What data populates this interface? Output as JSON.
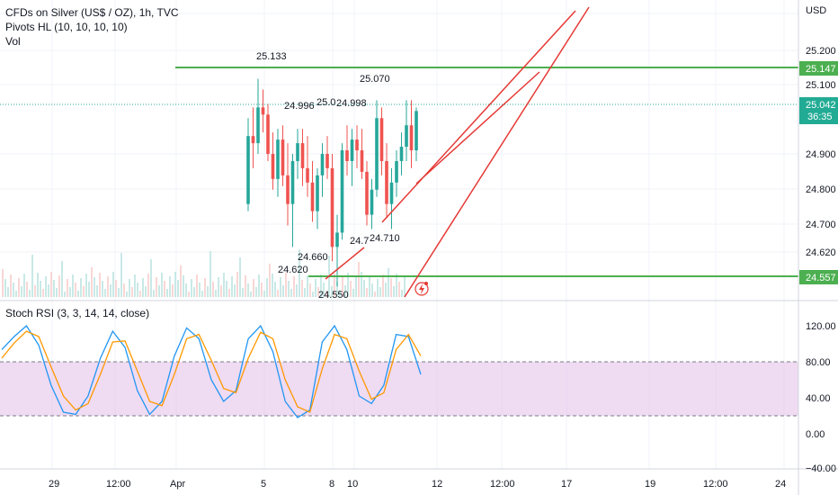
{
  "legend": {
    "symbol": "CFDs on Silver (US$ / OZ), 1h, TVC",
    "indicator": "Pivots HL (10, 10, 10, 10)",
    "volume": "Vol"
  },
  "rsi_legend": "Stoch RSI (3, 3, 14, 14, close)",
  "price_axis": {
    "currency": "USD",
    "ticks": [
      "25.200",
      "25.100",
      "24.900",
      "24.800",
      "24.700",
      "24.620"
    ],
    "tags": [
      {
        "value": "25.147",
        "color": "#4caf50"
      },
      {
        "value": "25.042",
        "sub": "36:35",
        "color": "#22ab94"
      },
      {
        "value": "24.557",
        "color": "#4caf50"
      }
    ]
  },
  "rsi_axis": {
    "ticks": [
      "120.00",
      "80.00",
      "40.00",
      "0.00",
      "−40.00"
    ]
  },
  "time_axis": {
    "labels": [
      "29",
      "12:00",
      "Apr",
      "5",
      "8",
      "10",
      "12",
      "12:00",
      "17",
      "19",
      "12:00",
      "24"
    ]
  },
  "colors": {
    "up": "#26a69a",
    "down": "#ef5350",
    "support": "#4caf50",
    "trend": "#e53935",
    "rsi_k": "#2196f3",
    "rsi_d": "#ff9800",
    "rsi_band": "#e1bee7"
  },
  "chart_data": [
    {
      "type": "candlestick",
      "title": "CFDs on Silver (US$ / OZ), 1h, TVC",
      "ylabel": "USD",
      "ylim": [
        24.52,
        25.3
      ],
      "horizontal_levels": [
        25.147,
        24.557
      ],
      "current_price": 25.042,
      "pivot_labels": [
        {
          "value": "25.133",
          "kind": "high"
        },
        {
          "value": "24.996",
          "kind": "high"
        },
        {
          "value": "25.0",
          "kind": "high"
        },
        {
          "value": "24.998",
          "kind": "high"
        },
        {
          "value": "25.070",
          "kind": "high"
        },
        {
          "value": "24.660",
          "kind": "low"
        },
        {
          "value": "24.620",
          "kind": "low"
        },
        {
          "value": "24.550",
          "kind": "low"
        },
        {
          "value": "24.7",
          "kind": "low"
        },
        {
          "value": "24.710",
          "kind": "low"
        }
      ],
      "candles": [
        [
          24.78,
          25.02,
          24.76,
          24.97
        ],
        [
          24.97,
          25.05,
          24.88,
          24.95
        ],
        [
          24.95,
          25.13,
          24.92,
          25.05
        ],
        [
          25.05,
          25.1,
          24.98,
          25.03
        ],
        [
          25.03,
          25.06,
          24.9,
          24.92
        ],
        [
          24.92,
          24.98,
          24.82,
          24.85
        ],
        [
          24.85,
          24.99,
          24.8,
          24.96
        ],
        [
          24.96,
          25.0,
          24.83,
          24.86
        ],
        [
          24.86,
          24.95,
          24.72,
          24.78
        ],
        [
          24.78,
          24.92,
          24.66,
          24.9
        ],
        [
          24.9,
          24.99,
          24.85,
          24.95
        ],
        [
          24.95,
          24.99,
          24.83,
          24.88
        ],
        [
          24.88,
          24.97,
          24.8,
          24.84
        ],
        [
          24.84,
          24.9,
          24.73,
          24.76
        ],
        [
          24.76,
          24.88,
          24.71,
          24.86
        ],
        [
          24.86,
          24.95,
          24.8,
          24.92
        ],
        [
          24.92,
          24.97,
          24.85,
          24.88
        ],
        [
          24.88,
          24.92,
          24.62,
          24.66
        ],
        [
          24.66,
          24.75,
          24.55,
          24.7
        ],
        [
          24.7,
          24.95,
          24.68,
          24.93
        ],
        [
          24.93,
          25.0,
          24.86,
          24.9
        ],
        [
          24.9,
          24.99,
          24.83,
          24.96
        ],
        [
          24.96,
          25.0,
          24.88,
          24.93
        ],
        [
          24.93,
          24.99,
          24.85,
          24.87
        ],
        [
          24.87,
          24.9,
          24.72,
          24.75
        ],
        [
          24.75,
          24.85,
          24.71,
          24.82
        ],
        [
          24.82,
          25.07,
          24.8,
          25.02
        ],
        [
          25.02,
          25.05,
          24.86,
          24.9
        ],
        [
          24.9,
          24.95,
          24.74,
          24.78
        ],
        [
          24.78,
          24.88,
          24.71,
          24.84
        ],
        [
          24.84,
          24.93,
          24.8,
          24.9
        ],
        [
          24.9,
          24.98,
          24.86,
          24.94
        ],
        [
          24.94,
          25.07,
          24.9,
          25.0
        ],
        [
          25.0,
          25.07,
          24.88,
          24.93
        ],
        [
          24.93,
          25.05,
          24.9,
          25.04
        ]
      ]
    },
    {
      "type": "line",
      "title": "Stoch RSI (3, 3, 14, 14, close)",
      "ylim": [
        -40,
        130
      ],
      "band": [
        20,
        80
      ],
      "series": [
        {
          "name": "K",
          "values": [
            78,
            90,
            100,
            82,
            45,
            20,
            18,
            35,
            70,
            95,
            80,
            40,
            18,
            30,
            72,
            98,
            88,
            50,
            30,
            40,
            88,
            100,
            76,
            30,
            15,
            22,
            85,
            100,
            78,
            35,
            28,
            45,
            92,
            90,
            55
          ]
        },
        {
          "name": "D",
          "values": [
            70,
            84,
            95,
            90,
            62,
            35,
            22,
            28,
            55,
            85,
            86,
            58,
            30,
            26,
            55,
            88,
            92,
            68,
            42,
            38,
            70,
            94,
            88,
            50,
            25,
            20,
            60,
            92,
            88,
            58,
            32,
            38,
            78,
            92,
            72
          ]
        }
      ]
    }
  ]
}
